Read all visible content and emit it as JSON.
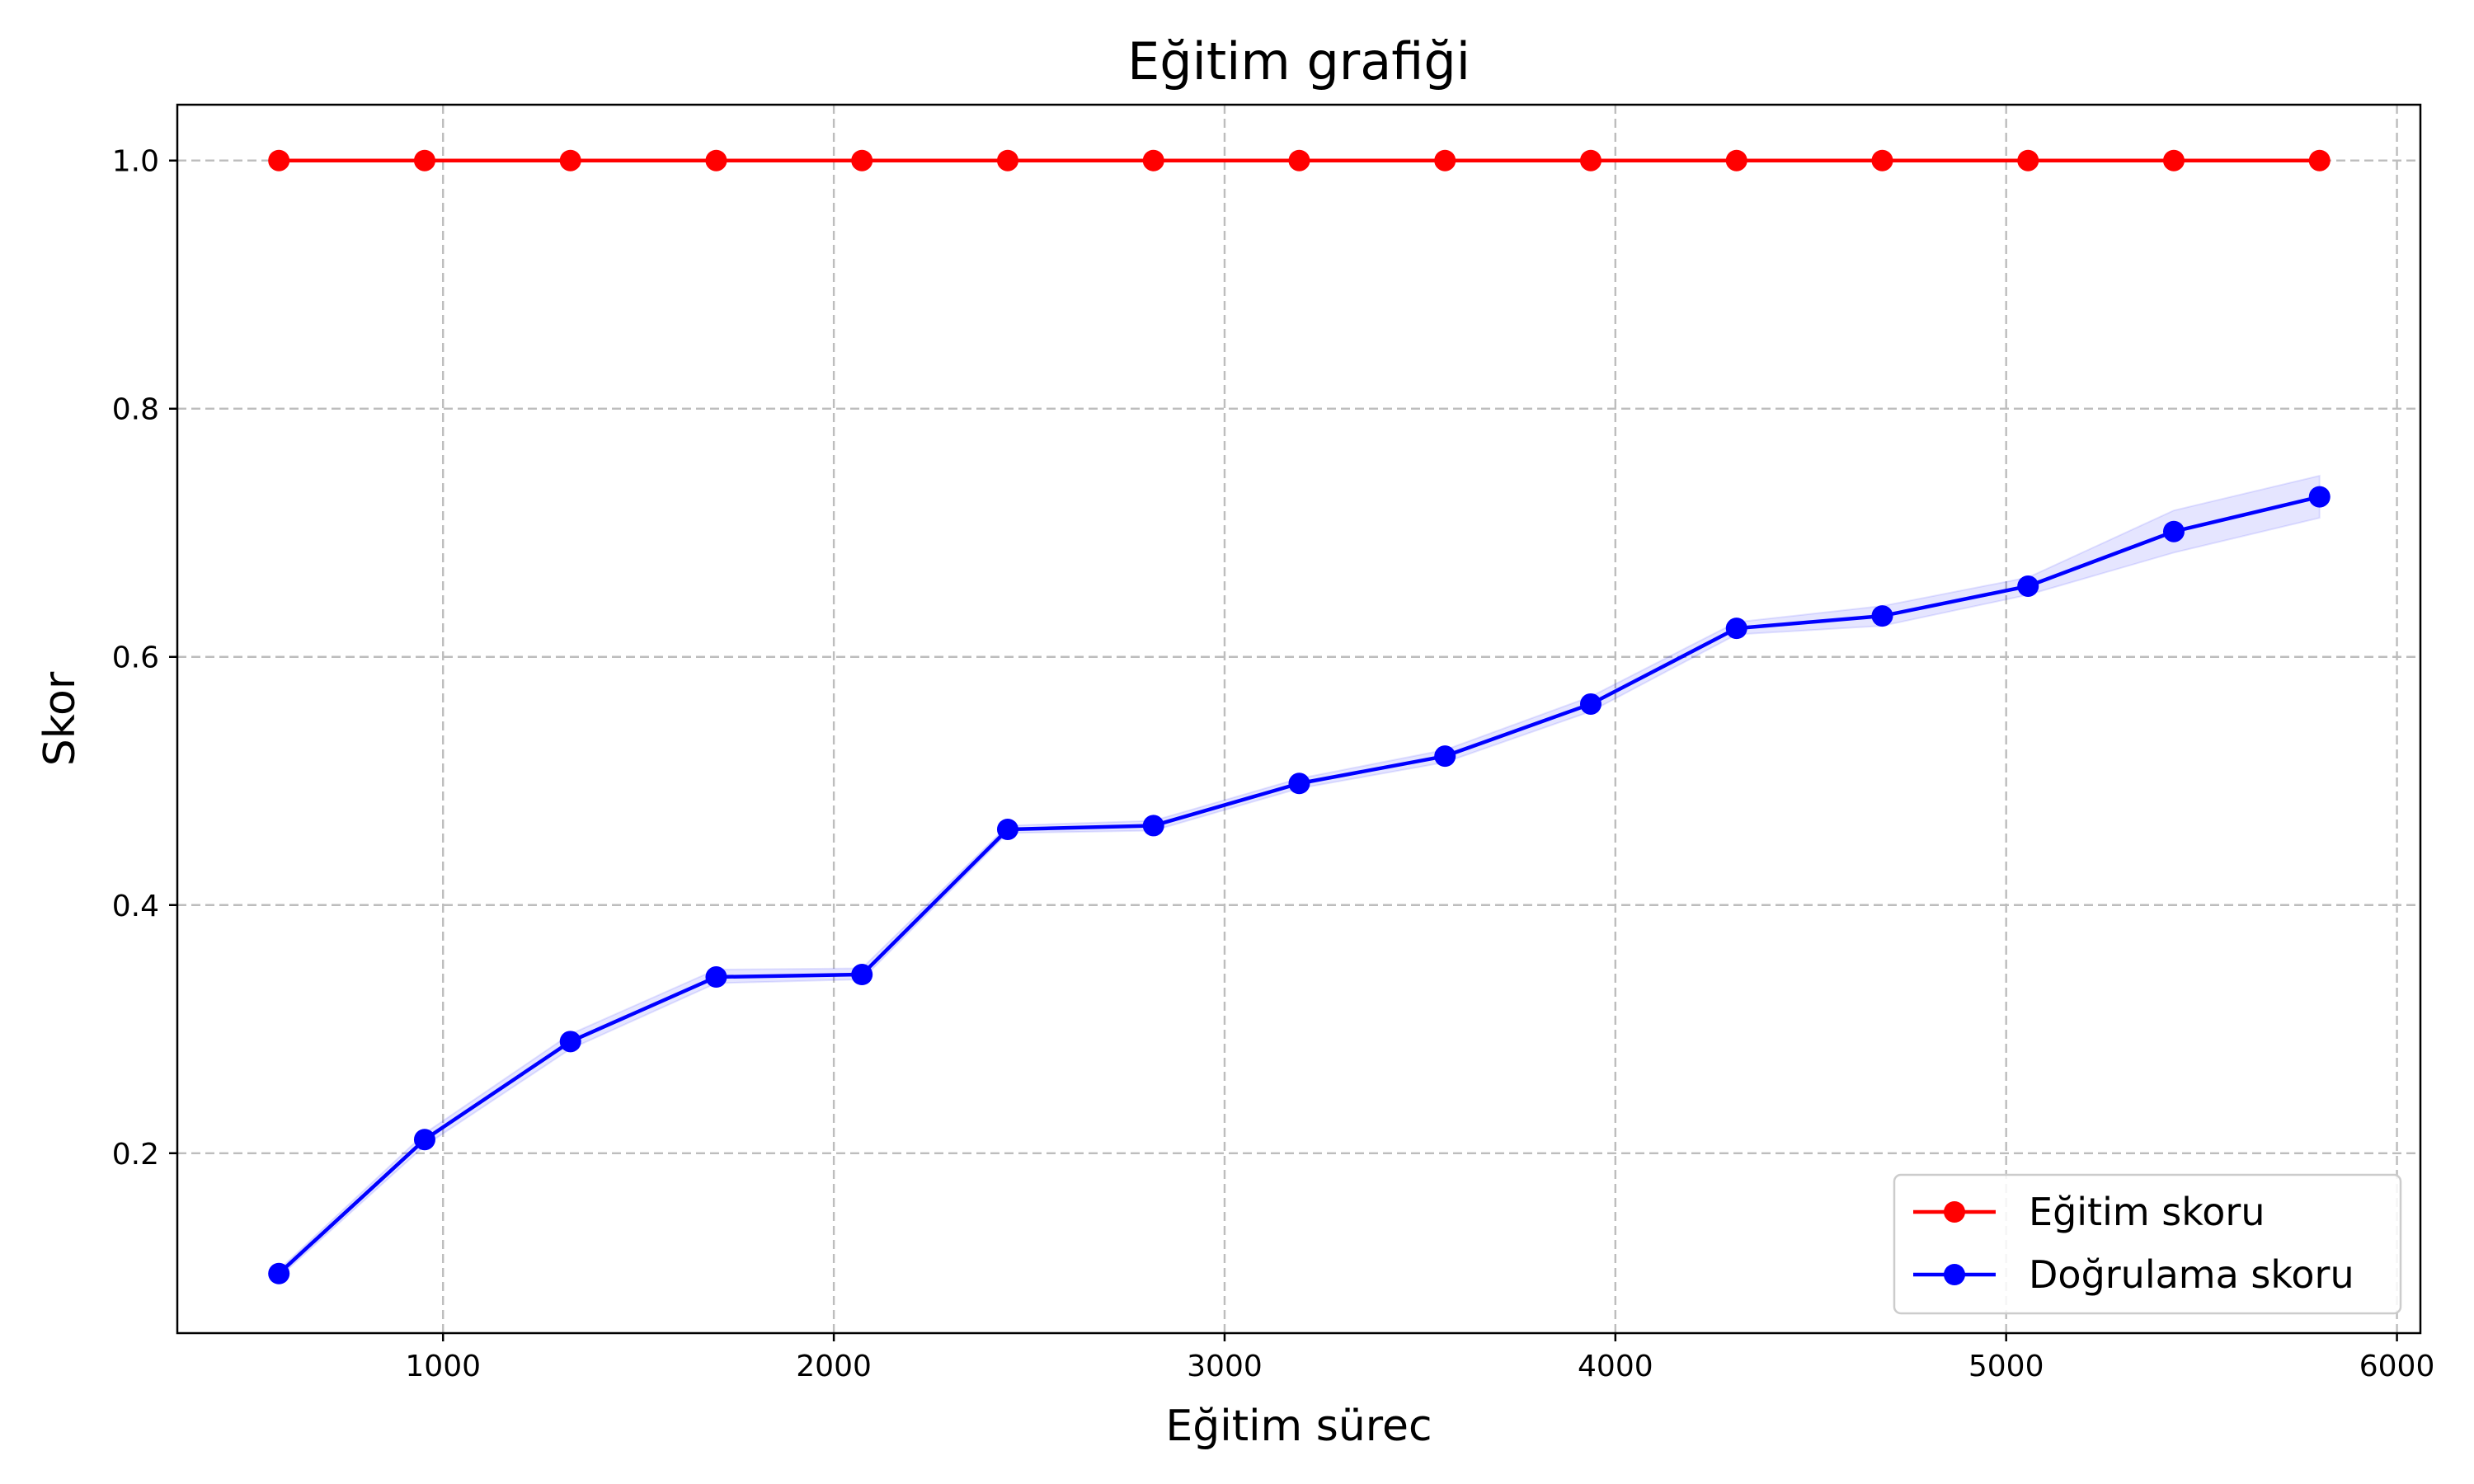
{
  "chart_data": {
    "type": "line",
    "title": "Eğitim grafiği",
    "xlabel": "Eğitim sürec",
    "ylabel": "Skor",
    "xlim": [
      320,
      6060
    ],
    "ylim": [
      0.055,
      1.045
    ],
    "x_ticks": [
      1000,
      2000,
      3000,
      4000,
      5000,
      6000
    ],
    "y_ticks": [
      0.2,
      0.4,
      0.6,
      0.8,
      1.0
    ],
    "x_tick_labels": [
      "1000",
      "2000",
      "3000",
      "4000",
      "5000",
      "6000"
    ],
    "y_tick_labels": [
      "0.2",
      "0.4",
      "0.6",
      "0.8",
      "1.0"
    ],
    "grid": true,
    "legend_position": "bottom-right",
    "x": [
      580,
      953,
      1326,
      1699,
      2072,
      2445,
      2818,
      3191,
      3564,
      3937,
      4310,
      4683,
      5056,
      5429,
      5802
    ],
    "series": [
      {
        "name": "Eğitim skoru",
        "color": "#ff0000",
        "marker": "circle",
        "values": [
          1.0,
          1.0,
          1.0,
          1.0,
          1.0,
          1.0,
          1.0,
          1.0,
          1.0,
          1.0,
          1.0,
          1.0,
          1.0,
          1.0,
          1.0
        ]
      },
      {
        "name": "Doğrulama skoru",
        "color": "#0000ff",
        "marker": "circle",
        "values": [
          0.103,
          0.211,
          0.29,
          0.342,
          0.344,
          0.461,
          0.464,
          0.498,
          0.52,
          0.562,
          0.623,
          0.633,
          0.657,
          0.701,
          0.729
        ],
        "band_lower": [
          0.1,
          0.206,
          0.284,
          0.337,
          0.34,
          0.458,
          0.46,
          0.494,
          0.515,
          0.556,
          0.618,
          0.625,
          0.65,
          0.684,
          0.712
        ],
        "band_upper": [
          0.106,
          0.216,
          0.296,
          0.348,
          0.349,
          0.464,
          0.468,
          0.502,
          0.525,
          0.568,
          0.628,
          0.641,
          0.664,
          0.718,
          0.746
        ],
        "band_color": "#0000ff"
      }
    ]
  }
}
